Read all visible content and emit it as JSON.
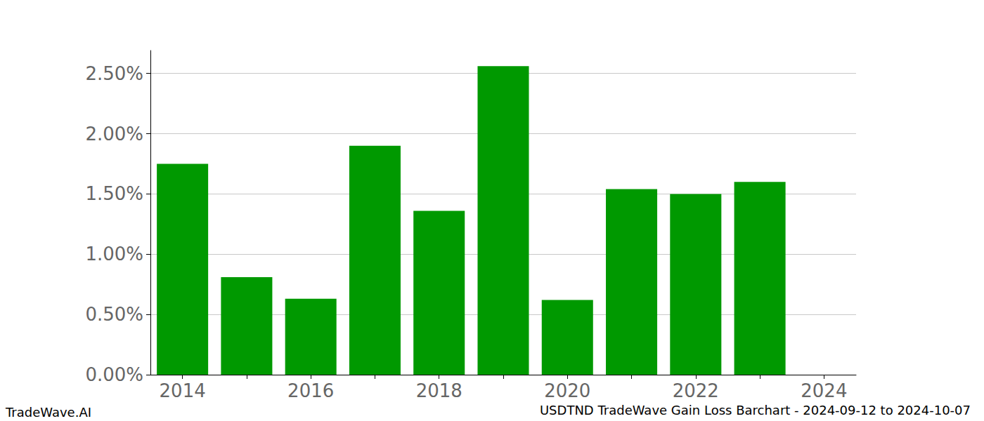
{
  "chart_data": {
    "type": "bar",
    "title": "USDTND TradeWave Gain Loss Barchart - 2024-09-12 to 2024-10-07",
    "annotations": [
      "TradeWave.AI"
    ],
    "categories": [
      "2014",
      null,
      "2016",
      null,
      "2018",
      null,
      "2020",
      null,
      "2022",
      null,
      "2024"
    ],
    "values": [
      1.75,
      0.81,
      0.63,
      1.9,
      1.36,
      2.56,
      0.62,
      1.54,
      1.5,
      1.6,
      null
    ],
    "color": "#009900",
    "ylim": [
      0,
      2.69
    ],
    "yticks": [
      {
        "value": 0,
        "label": "0.00%"
      },
      {
        "value": 0.5,
        "label": "0.50%"
      },
      {
        "value": 1,
        "label": "1.00%"
      },
      {
        "value": 1.5,
        "label": "1.50%"
      },
      {
        "value": 2,
        "label": "2.00%"
      },
      {
        "value": 2.5,
        "label": "2.50%"
      }
    ],
    "grid": true
  }
}
